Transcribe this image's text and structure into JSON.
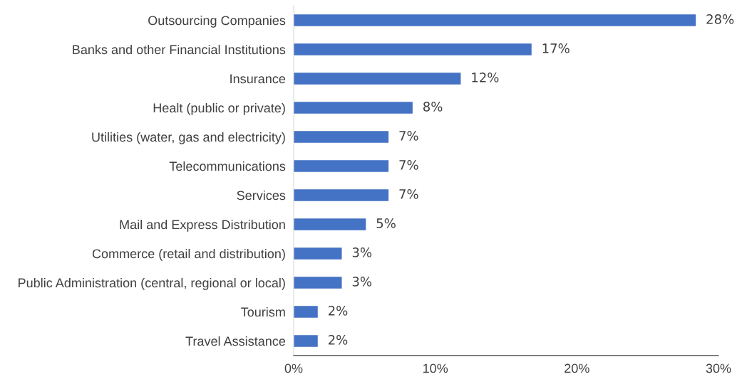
{
  "chart_data": {
    "type": "bar",
    "orientation": "horizontal",
    "categories": [
      "Outsourcing Companies",
      "Banks and other Financial Institutions",
      "Insurance",
      "Healt (public or private)",
      "Utilities (water, gas and electricity)",
      "Telecommunications",
      "Services",
      "Mail and Express Distribution",
      "Commerce (retail and distribution)",
      "Public Administration (central, regional or local)",
      "Tourism",
      "Travel Assistance"
    ],
    "values": [
      28.4,
      16.8,
      11.8,
      8.4,
      6.7,
      6.7,
      6.7,
      5.1,
      3.4,
      3.4,
      1.7,
      1.7
    ],
    "value_labels": [
      "28%",
      "17%",
      "12%",
      "8%",
      "7%",
      "7%",
      "7%",
      "5%",
      "3%",
      "3%",
      "2%",
      "2%"
    ],
    "color": "#4472c4",
    "xlim": [
      0,
      30
    ],
    "xticks": [
      {
        "value": 0,
        "label": "0%"
      },
      {
        "value": 10,
        "label": "10%"
      },
      {
        "value": 20,
        "label": "20%"
      },
      {
        "value": 30,
        "label": "30%"
      }
    ],
    "grid": false,
    "legend": false
  }
}
